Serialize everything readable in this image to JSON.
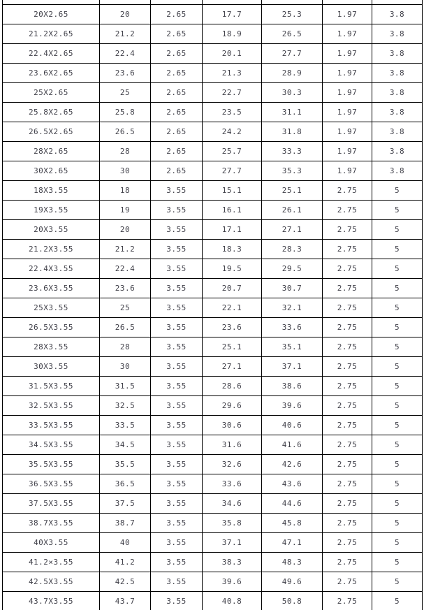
{
  "colors": {
    "border": "#000000",
    "text": "#3f3f48",
    "background": "#ffffff"
  },
  "table": {
    "rows": [
      [
        "20X2.65",
        "20",
        "2.65",
        "17.7",
        "25.3",
        "1.97",
        "3.8"
      ],
      [
        "21.2X2.65",
        "21.2",
        "2.65",
        "18.9",
        "26.5",
        "1.97",
        "3.8"
      ],
      [
        "22.4X2.65",
        "22.4",
        "2.65",
        "20.1",
        "27.7",
        "1.97",
        "3.8"
      ],
      [
        "23.6X2.65",
        "23.6",
        "2.65",
        "21.3",
        "28.9",
        "1.97",
        "3.8"
      ],
      [
        "25X2.65",
        "25",
        "2.65",
        "22.7",
        "30.3",
        "1.97",
        "3.8"
      ],
      [
        "25.8X2.65",
        "25.8",
        "2.65",
        "23.5",
        "31.1",
        "1.97",
        "3.8"
      ],
      [
        "26.5X2.65",
        "26.5",
        "2.65",
        "24.2",
        "31.8",
        "1.97",
        "3.8"
      ],
      [
        "28X2.65",
        "28",
        "2.65",
        "25.7",
        "33.3",
        "1.97",
        "3.8"
      ],
      [
        "30X2.65",
        "30",
        "2.65",
        "27.7",
        "35.3",
        "1.97",
        "3.8"
      ],
      [
        "18X3.55",
        "18",
        "3.55",
        "15.1",
        "25.1",
        "2.75",
        "5"
      ],
      [
        "19X3.55",
        "19",
        "3.55",
        "16.1",
        "26.1",
        "2.75",
        "5"
      ],
      [
        "20X3.55",
        "20",
        "3.55",
        "17.1",
        "27.1",
        "2.75",
        "5"
      ],
      [
        "21.2X3.55",
        "21.2",
        "3.55",
        "18.3",
        "28.3",
        "2.75",
        "5"
      ],
      [
        "22.4X3.55",
        "22.4",
        "3.55",
        "19.5",
        "29.5",
        "2.75",
        "5"
      ],
      [
        "23.6X3.55",
        "23.6",
        "3.55",
        "20.7",
        "30.7",
        "2.75",
        "5"
      ],
      [
        "25X3.55",
        "25",
        "3.55",
        "22.1",
        "32.1",
        "2.75",
        "5"
      ],
      [
        "26.5X3.55",
        "26.5",
        "3.55",
        "23.6",
        "33.6",
        "2.75",
        "5"
      ],
      [
        "28X3.55",
        "28",
        "3.55",
        "25.1",
        "35.1",
        "2.75",
        "5"
      ],
      [
        "30X3.55",
        "30",
        "3.55",
        "27.1",
        "37.1",
        "2.75",
        "5"
      ],
      [
        "31.5X3.55",
        "31.5",
        "3.55",
        "28.6",
        "38.6",
        "2.75",
        "5"
      ],
      [
        "32.5X3.55",
        "32.5",
        "3.55",
        "29.6",
        "39.6",
        "2.75",
        "5"
      ],
      [
        "33.5X3.55",
        "33.5",
        "3.55",
        "30.6",
        "40.6",
        "2.75",
        "5"
      ],
      [
        "34.5X3.55",
        "34.5",
        "3.55",
        "31.6",
        "41.6",
        "2.75",
        "5"
      ],
      [
        "35.5X3.55",
        "35.5",
        "3.55",
        "32.6",
        "42.6",
        "2.75",
        "5"
      ],
      [
        "36.5X3.55",
        "36.5",
        "3.55",
        "33.6",
        "43.6",
        "2.75",
        "5"
      ],
      [
        "37.5X3.55",
        "37.5",
        "3.55",
        "34.6",
        "44.6",
        "2.75",
        "5"
      ],
      [
        "38.7X3.55",
        "38.7",
        "3.55",
        "35.8",
        "45.8",
        "2.75",
        "5"
      ],
      [
        "40X3.55",
        "40",
        "3.55",
        "37.1",
        "47.1",
        "2.75",
        "5"
      ],
      [
        "41.2×3.55",
        "41.2",
        "3.55",
        "38.3",
        "48.3",
        "2.75",
        "5"
      ],
      [
        "42.5X3.55",
        "42.5",
        "3.55",
        "39.6",
        "49.6",
        "2.75",
        "5"
      ],
      [
        "43.7X3.55",
        "43.7",
        "3.55",
        "40.8",
        "50.8",
        "2.75",
        "5"
      ]
    ]
  }
}
